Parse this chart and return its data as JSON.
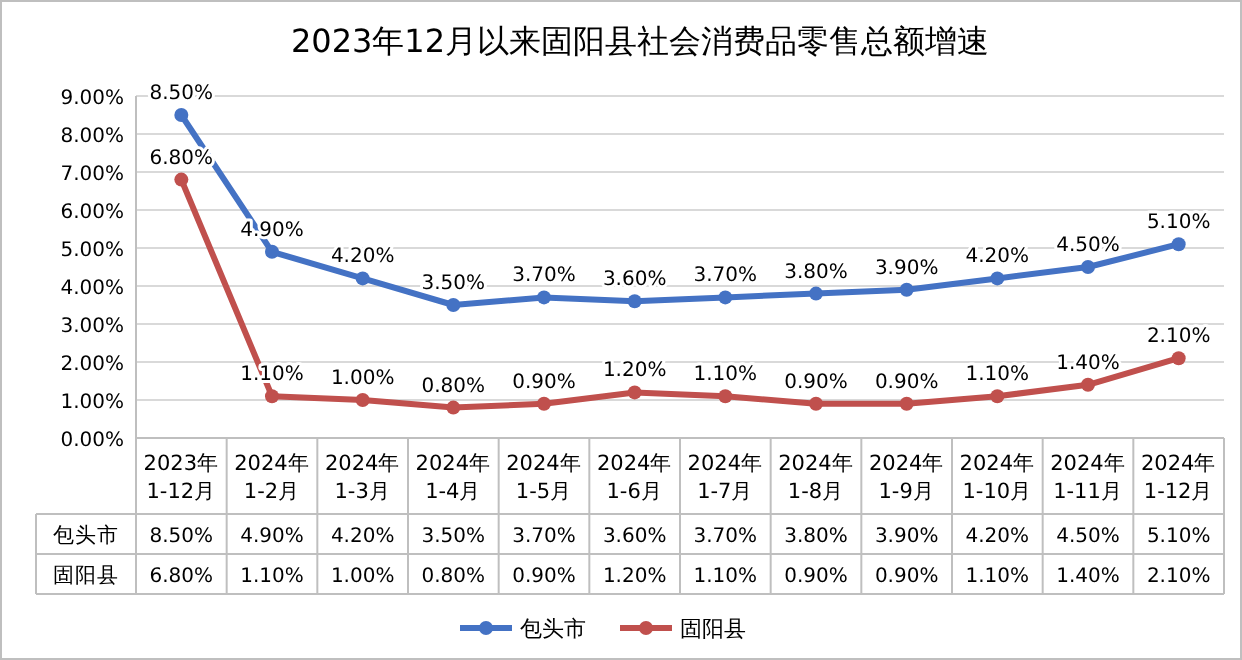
{
  "chart_data": {
    "type": "line",
    "title": "2023年12月以来固阳县社会消费品零售总额增速",
    "categories": [
      "2023年 1-12月",
      "2024年 1-2月",
      "2024年 1-3月",
      "2024年 1-4月",
      "2024年 1-5月",
      "2024年 1-6月",
      "2024年 1-7月",
      "2024年 1-8月",
      "2024年 1-9月",
      "2024年 1-10月",
      "2024年 1-11月",
      "2024年 1-12月"
    ],
    "series": [
      {
        "name": "包头市",
        "color": "#4472c4",
        "values": [
          8.5,
          4.9,
          4.2,
          3.5,
          3.7,
          3.6,
          3.7,
          3.8,
          3.9,
          4.2,
          4.5,
          5.1
        ],
        "value_labels": [
          "8.50%",
          "4.90%",
          "4.20%",
          "3.50%",
          "3.70%",
          "3.60%",
          "3.70%",
          "3.80%",
          "3.90%",
          "4.20%",
          "4.50%",
          "5.10%"
        ]
      },
      {
        "name": "固阳县",
        "color": "#c0504d",
        "values": [
          6.8,
          1.1,
          1.0,
          0.8,
          0.9,
          1.2,
          1.1,
          0.9,
          0.9,
          1.1,
          1.4,
          2.1
        ],
        "value_labels": [
          "6.80%",
          "1.10%",
          "1.00%",
          "0.80%",
          "0.90%",
          "1.20%",
          "1.10%",
          "0.90%",
          "0.90%",
          "1.10%",
          "1.40%",
          "2.10%"
        ]
      }
    ],
    "ylim": [
      0,
      9
    ],
    "yticks": [
      {
        "value": 0,
        "label": "0.00%"
      },
      {
        "value": 1,
        "label": "1.00%"
      },
      {
        "value": 2,
        "label": "2.00%"
      },
      {
        "value": 3,
        "label": "3.00%"
      },
      {
        "value": 4,
        "label": "4.00%"
      },
      {
        "value": 5,
        "label": "5.00%"
      },
      {
        "value": 6,
        "label": "6.00%"
      },
      {
        "value": 7,
        "label": "7.00%"
      },
      {
        "value": 8,
        "label": "8.00%"
      },
      {
        "value": 9,
        "label": "9.00%"
      }
    ],
    "grid": "y",
    "legend": "bottom",
    "marker": "circle",
    "line_style": "solid"
  }
}
